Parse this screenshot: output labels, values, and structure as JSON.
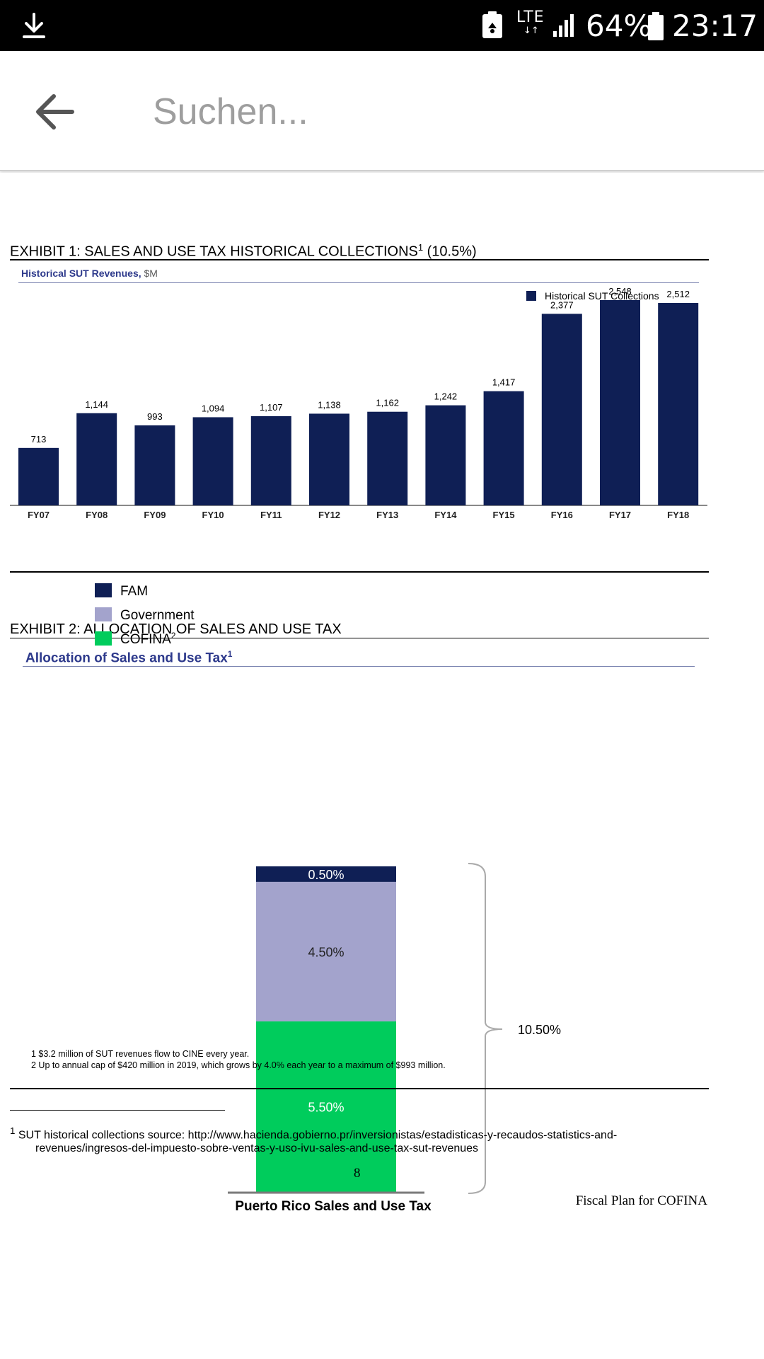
{
  "status_bar": {
    "network": "LTE",
    "network_arrows": "↓↑",
    "battery": "64%",
    "time": "23:17"
  },
  "search": {
    "placeholder": "Suchen..."
  },
  "exhibit1": {
    "title": "EXHIBIT 1: SALES AND USE TAX HISTORICAL COLLECTIONS",
    "title_sup": "1",
    "title_suffix": " (10.5%)",
    "subtitle": "Historical SUT Revenues,",
    "subtitle_unit": "$M"
  },
  "exhibit2": {
    "title": "EXHIBIT 2: ALLOCATION OF SALES AND USE TAX",
    "subtitle": "Allocation of Sales and Use Tax",
    "subtitle_sup": "1"
  },
  "chart_data": [
    {
      "type": "bar",
      "title": "Historical SUT Revenues, $M",
      "categories": [
        "FY07",
        "FY08",
        "FY09",
        "FY10",
        "FY11",
        "FY12",
        "FY13",
        "FY14",
        "FY15",
        "FY16",
        "FY17",
        "FY18"
      ],
      "series": [
        {
          "name": "Historical SUT Collections",
          "values": [
            713,
            1144,
            993,
            1094,
            1107,
            1138,
            1162,
            1242,
            1417,
            2377,
            2548,
            2512
          ],
          "color": "#0f1f55"
        }
      ],
      "data_labels": [
        "713",
        "1,144",
        "993",
        "1,094",
        "1,107",
        "1,138",
        "1,162",
        "1,242",
        "1,417",
        "2,377",
        "2,548",
        "2,512"
      ],
      "legend": "top-right",
      "ylim": [
        0,
        2600
      ],
      "xlabel": "",
      "ylabel": ""
    },
    {
      "type": "bar",
      "stacked": true,
      "title": "Allocation of Sales and Use Tax",
      "categories": [
        "Puerto Rico Sales and Use Tax"
      ],
      "series": [
        {
          "name": "COFINA",
          "legend_label": "COFINA",
          "legend_sup": "2",
          "value": 5.5,
          "label": "5.50%",
          "color": "#00cc5c"
        },
        {
          "name": "Government",
          "legend_label": "Government",
          "legend_sup": "",
          "value": 4.5,
          "label": "4.50%",
          "color": "#a3a3cc"
        },
        {
          "name": "FAM",
          "legend_label": "FAM",
          "legend_sup": "",
          "value": 0.5,
          "label": "0.50%",
          "color": "#0f1f55"
        }
      ],
      "total_label": "10.50%",
      "xlabel": "Puerto Rico Sales and Use Tax",
      "legend": "top-left"
    }
  ],
  "notes": {
    "note1": "1 $3.2 million of SUT revenues flow to CINE every year.",
    "note2": "2 Up to annual cap of $420 million in 2019, which grows by 4.0% each year to a maximum of $993 million."
  },
  "footnote": {
    "marker": "1",
    "line1": "SUT historical collections source: http://www.hacienda.gobierno.pr/inversionistas/estadisticas-y-recaudos-statistics-and-",
    "line2": "revenues/ingresos-del-impuesto-sobre-ventas-y-uso-ivu-sales-and-use-tax-sut-revenues"
  },
  "page_number": "8",
  "doc_footer": "Fiscal Plan for COFINA"
}
